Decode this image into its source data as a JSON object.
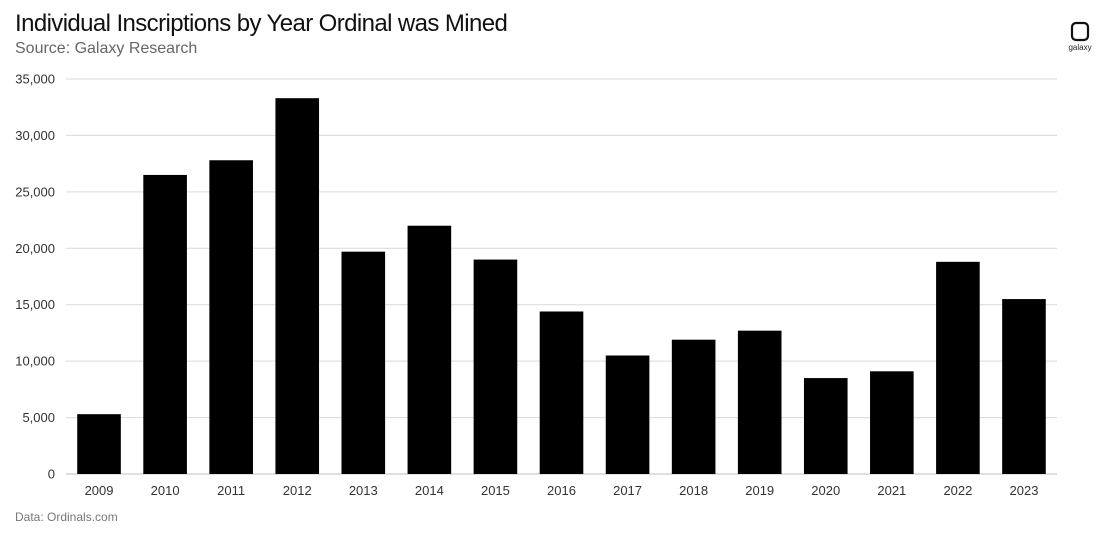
{
  "chart_data": {
    "type": "bar",
    "title": "Individual Inscriptions by Year Ordinal was Mined",
    "subtitle": "Source: Galaxy Research",
    "note": "Data: Ordinals.com",
    "xlabel": "",
    "ylabel": "",
    "ylim": [
      0,
      35000
    ],
    "yticks": [
      0,
      5000,
      10000,
      15000,
      20000,
      25000,
      30000,
      35000
    ],
    "ytick_labels": [
      "0",
      "5,000",
      "10,000",
      "15,000",
      "20,000",
      "25,000",
      "30,000",
      "35,000"
    ],
    "grid": true,
    "categories": [
      "2009",
      "2010",
      "2011",
      "2012",
      "2013",
      "2014",
      "2015",
      "2016",
      "2017",
      "2018",
      "2019",
      "2020",
      "2021",
      "2022",
      "2023"
    ],
    "values": [
      5300,
      26500,
      27800,
      33300,
      19700,
      22000,
      19000,
      14400,
      10500,
      11900,
      12700,
      8500,
      9100,
      18800,
      15500
    ],
    "bar_color": "#000000",
    "grid_color": "#d9d9d9"
  },
  "brand": {
    "logo_icon": "galaxy-logo-icon",
    "logo_text": "galaxy"
  }
}
